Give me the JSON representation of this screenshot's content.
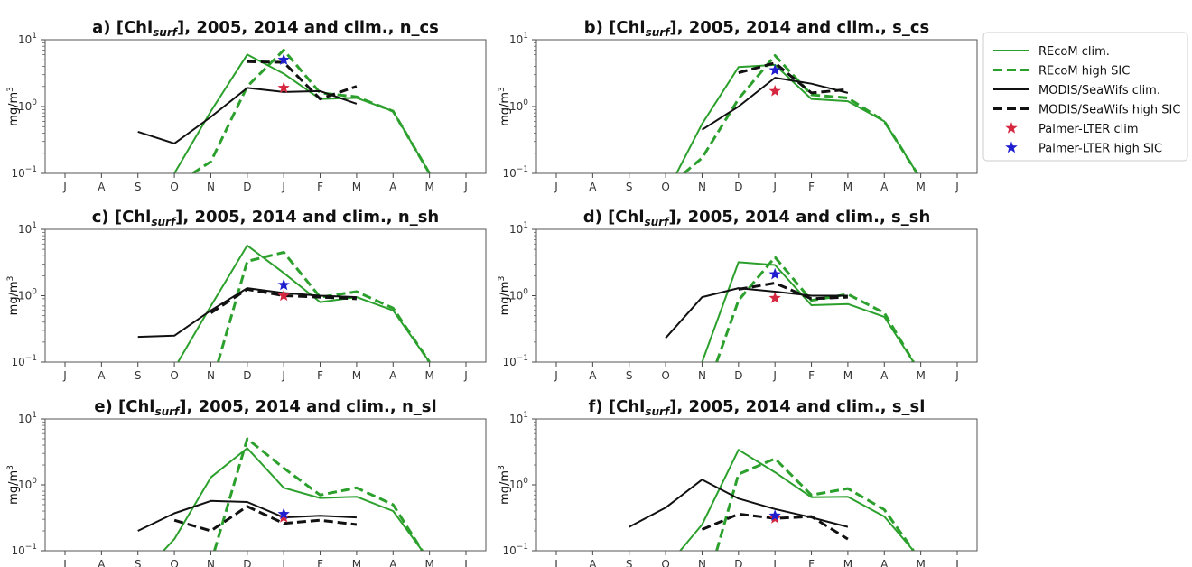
{
  "colors": {
    "recom": "#2ca02c",
    "modis": "#111111",
    "palmer_clim": "#d62740",
    "palmer_high": "#1f1fcf"
  },
  "legend": {
    "items": [
      {
        "label": "REcoM clim.",
        "style": "solid",
        "color": "#2ca02c",
        "marker": "line"
      },
      {
        "label": "REcoM high SIC",
        "style": "dashed",
        "color": "#2ca02c",
        "marker": "line"
      },
      {
        "label": "MODIS/SeaWifs clim.",
        "style": "solid",
        "color": "#111111",
        "marker": "line"
      },
      {
        "label": "MODIS/SeaWifs high SIC",
        "style": "dashed",
        "color": "#111111",
        "marker": "line"
      },
      {
        "label": "Palmer-LTER clim",
        "style": "star",
        "color": "#d62740",
        "marker": "star"
      },
      {
        "label": "Palmer-LTER high SIC",
        "style": "star",
        "color": "#1f1fcf",
        "marker": "star"
      }
    ]
  },
  "chart_data": [
    {
      "type": "line",
      "title_prefix": "a) [Chl",
      "title_sub": "surf",
      "title_suffix": "], 2005, 2014 and clim., n_cs",
      "ylabel_base": "mg/m",
      "ylabel_sup": "3",
      "yscale": "log",
      "ylim": [
        0.1,
        10
      ],
      "yticks": [
        "10",
        "10"
      ],
      "ytick_exps": [
        "1",
        "0",
        "−1"
      ],
      "categories": [
        "J",
        "A",
        "S",
        "O",
        "N",
        "D",
        "J",
        "F",
        "M",
        "A",
        "M",
        "J"
      ],
      "series": [
        {
          "name": "REcoM clim.",
          "style": "solid",
          "color": "#2ca02c",
          "x": [
            3,
            4,
            5,
            6,
            7,
            8,
            9,
            10
          ],
          "values": [
            0.1,
            0.85,
            6.0,
            3.1,
            1.3,
            1.35,
            0.85,
            0.1
          ]
        },
        {
          "name": "REcoM high SIC",
          "style": "dashed",
          "color": "#2ca02c",
          "x": [
            3.5,
            4,
            5,
            6,
            7,
            8,
            9,
            10
          ],
          "values": [
            0.1,
            0.15,
            2.0,
            7.0,
            1.6,
            1.4,
            0.85,
            0.1
          ]
        },
        {
          "name": "MODIS/SeaWifs clim.",
          "style": "solid",
          "color": "#111111",
          "x": [
            2,
            3,
            4,
            5,
            6,
            7,
            8
          ],
          "values": [
            0.42,
            0.28,
            0.7,
            1.9,
            1.65,
            1.7,
            1.1
          ]
        },
        {
          "name": "MODIS/SeaWifs high SIC",
          "style": "dashed",
          "color": "#111111",
          "x": [
            5,
            6,
            7,
            8
          ],
          "values": [
            4.7,
            4.6,
            1.3,
            2.0
          ]
        }
      ],
      "markers": [
        {
          "name": "Palmer-LTER clim",
          "color": "#d62740",
          "x": 6,
          "value": 1.9
        },
        {
          "name": "Palmer-LTER high SIC",
          "color": "#1f1fcf",
          "x": 6,
          "value": 5.0
        }
      ]
    },
    {
      "type": "line",
      "title_prefix": "b) [Chl",
      "title_sub": "surf",
      "title_suffix": "], 2005, 2014 and clim., s_cs",
      "ylabel_base": "mg/m",
      "ylabel_sup": "3",
      "yscale": "log",
      "ylim": [
        0.1,
        10
      ],
      "yticks": [
        "10",
        "10"
      ],
      "ytick_exps": [
        "1",
        "0",
        "−1"
      ],
      "categories": [
        "J",
        "A",
        "S",
        "O",
        "N",
        "D",
        "J",
        "F",
        "M",
        "A",
        "M",
        "J"
      ],
      "series": [
        {
          "name": "REcoM clim.",
          "style": "solid",
          "color": "#2ca02c",
          "x": [
            3.3,
            4,
            5,
            6,
            7,
            8,
            9,
            9.9
          ],
          "values": [
            0.1,
            0.55,
            3.9,
            4.2,
            1.3,
            1.2,
            0.6,
            0.1
          ]
        },
        {
          "name": "REcoM high SIC",
          "style": "dashed",
          "color": "#2ca02c",
          "x": [
            3.5,
            4,
            5,
            6,
            7,
            8,
            9,
            9.9
          ],
          "values": [
            0.1,
            0.17,
            1.3,
            5.8,
            1.5,
            1.35,
            0.6,
            0.1
          ]
        },
        {
          "name": "MODIS/SeaWifs clim.",
          "style": "solid",
          "color": "#111111",
          "x": [
            4,
            5,
            6,
            7,
            8
          ],
          "values": [
            0.45,
            1.0,
            2.7,
            2.2,
            1.6
          ]
        },
        {
          "name": "MODIS/SeaWifs high SIC",
          "style": "dashed",
          "color": "#111111",
          "x": [
            5,
            6,
            7,
            8
          ],
          "values": [
            3.2,
            4.5,
            1.6,
            1.8
          ]
        }
      ],
      "markers": [
        {
          "name": "Palmer-LTER clim",
          "color": "#d62740",
          "x": 6,
          "value": 1.7
        },
        {
          "name": "Palmer-LTER high SIC",
          "color": "#1f1fcf",
          "x": 6,
          "value": 3.5
        }
      ]
    },
    {
      "type": "line",
      "title_prefix": "c) [Chl",
      "title_sub": "surf",
      "title_suffix": "], 2005, 2014 and clim., n_sh",
      "ylabel_base": "mg/m",
      "ylabel_sup": "3",
      "yscale": "log",
      "ylim": [
        0.1,
        10
      ],
      "yticks": [
        "10",
        "10"
      ],
      "ytick_exps": [
        "1",
        "0",
        "−1"
      ],
      "categories": [
        "J",
        "A",
        "S",
        "O",
        "N",
        "D",
        "J",
        "F",
        "M",
        "A",
        "M",
        "J"
      ],
      "series": [
        {
          "name": "REcoM clim.",
          "style": "solid",
          "color": "#2ca02c",
          "x": [
            3.1,
            4,
            5,
            6,
            7,
            8,
            9,
            10
          ],
          "values": [
            0.1,
            0.7,
            5.7,
            2.2,
            0.8,
            0.95,
            0.6,
            0.1
          ]
        },
        {
          "name": "REcoM high SIC",
          "style": "dashed",
          "color": "#2ca02c",
          "x": [
            4.2,
            5,
            6,
            7,
            8,
            9,
            10
          ],
          "values": [
            0.1,
            3.3,
            4.5,
            0.95,
            1.15,
            0.65,
            0.1
          ]
        },
        {
          "name": "MODIS/SeaWifs clim.",
          "style": "solid",
          "color": "#111111",
          "x": [
            2,
            3,
            4,
            5,
            6,
            7,
            8
          ],
          "values": [
            0.24,
            0.25,
            0.6,
            1.3,
            1.1,
            1.0,
            0.95
          ]
        },
        {
          "name": "MODIS/SeaWifs high SIC",
          "style": "dashed",
          "color": "#111111",
          "x": [
            4,
            5,
            6,
            7,
            8
          ],
          "values": [
            0.55,
            1.25,
            1.0,
            0.95,
            0.9
          ]
        }
      ],
      "markers": [
        {
          "name": "Palmer-LTER clim",
          "color": "#d62740",
          "x": 6,
          "value": 1.0
        },
        {
          "name": "Palmer-LTER high SIC",
          "color": "#1f1fcf",
          "x": 6,
          "value": 1.45
        }
      ]
    },
    {
      "type": "line",
      "title_prefix": "d) [Chl",
      "title_sub": "surf",
      "title_suffix": "], 2005, 2014 and clim., s_sh",
      "ylabel_base": "mg/m",
      "ylabel_sup": "3",
      "yscale": "log",
      "ylim": [
        0.1,
        10
      ],
      "yticks": [
        "10",
        "10"
      ],
      "ytick_exps": [
        "1",
        "0",
        "−1"
      ],
      "categories": [
        "J",
        "A",
        "S",
        "O",
        "N",
        "D",
        "J",
        "F",
        "M",
        "A",
        "M",
        "J"
      ],
      "series": [
        {
          "name": "REcoM clim.",
          "style": "solid",
          "color": "#2ca02c",
          "x": [
            4,
            5,
            6,
            7,
            8,
            9,
            9.8
          ],
          "values": [
            0.1,
            3.2,
            2.9,
            0.72,
            0.75,
            0.48,
            0.1
          ]
        },
        {
          "name": "REcoM high SIC",
          "style": "dashed",
          "color": "#2ca02c",
          "x": [
            4.4,
            5,
            6,
            7,
            8,
            9,
            9.8
          ],
          "values": [
            0.1,
            0.85,
            3.8,
            0.85,
            1.05,
            0.55,
            0.1
          ]
        },
        {
          "name": "MODIS/SeaWifs clim.",
          "style": "solid",
          "color": "#111111",
          "x": [
            3,
            4,
            5,
            6,
            7,
            8
          ],
          "values": [
            0.23,
            0.95,
            1.3,
            1.15,
            1.0,
            1.0
          ]
        },
        {
          "name": "MODIS/SeaWifs high SIC",
          "style": "dashed",
          "color": "#111111",
          "x": [
            5,
            6,
            7,
            8
          ],
          "values": [
            1.25,
            1.55,
            0.9,
            0.95
          ]
        }
      ],
      "markers": [
        {
          "name": "Palmer-LTER clim",
          "color": "#d62740",
          "x": 6,
          "value": 0.92
        },
        {
          "name": "Palmer-LTER high SIC",
          "color": "#1f1fcf",
          "x": 6,
          "value": 2.1
        }
      ]
    },
    {
      "type": "line",
      "title_prefix": "e) [Chl",
      "title_sub": "surf",
      "title_suffix": "], 2005, 2014 and clim., n_sl",
      "ylabel_base": "mg/m",
      "ylabel_sup": "3",
      "yscale": "log",
      "ylim": [
        0.1,
        10
      ],
      "yticks": [
        "10",
        "10"
      ],
      "ytick_exps": [
        "1",
        "0",
        "−1"
      ],
      "categories": [
        "J",
        "A",
        "S",
        "O",
        "N",
        "D",
        "J",
        "F",
        "M",
        "A",
        "M",
        "J"
      ],
      "series": [
        {
          "name": "REcoM clim.",
          "style": "solid",
          "color": "#2ca02c",
          "x": [
            2.7,
            3,
            4,
            5,
            6,
            7,
            8,
            9,
            9.8
          ],
          "values": [
            0.1,
            0.15,
            1.3,
            3.6,
            0.9,
            0.63,
            0.66,
            0.4,
            0.1
          ]
        },
        {
          "name": "REcoM high SIC",
          "style": "dashed",
          "color": "#2ca02c",
          "x": [
            4.1,
            5,
            6,
            7,
            8,
            9,
            9.8
          ],
          "values": [
            0.1,
            5.0,
            1.8,
            0.7,
            0.9,
            0.5,
            0.1
          ]
        },
        {
          "name": "MODIS/SeaWifs clim.",
          "style": "solid",
          "color": "#111111",
          "x": [
            2,
            3,
            4,
            5,
            6,
            7,
            8
          ],
          "values": [
            0.2,
            0.37,
            0.57,
            0.55,
            0.32,
            0.34,
            0.32
          ]
        },
        {
          "name": "MODIS/SeaWifs high SIC",
          "style": "dashed",
          "color": "#111111",
          "x": [
            3,
            4,
            5,
            6,
            7,
            8
          ],
          "values": [
            0.29,
            0.2,
            0.47,
            0.26,
            0.29,
            0.25
          ]
        }
      ],
      "markers": [
        {
          "name": "Palmer-LTER clim",
          "color": "#d62740",
          "x": 6,
          "value": 0.32
        },
        {
          "name": "Palmer-LTER high SIC",
          "color": "#1f1fcf",
          "x": 6,
          "value": 0.36
        }
      ]
    },
    {
      "type": "line",
      "title_prefix": "f) [Chl",
      "title_sub": "surf",
      "title_suffix": "], 2005, 2014 and clim., s_sl",
      "ylabel_base": "mg/m",
      "ylabel_sup": "3",
      "yscale": "log",
      "ylim": [
        0.1,
        10
      ],
      "yticks": [
        "10",
        "10"
      ],
      "ytick_exps": [
        "1",
        "0",
        "−1"
      ],
      "categories": [
        "J",
        "A",
        "S",
        "O",
        "N",
        "D",
        "J",
        "F",
        "M",
        "A",
        "M",
        "J"
      ],
      "series": [
        {
          "name": "REcoM clim.",
          "style": "solid",
          "color": "#2ca02c",
          "x": [
            3.4,
            4,
            5,
            6,
            7,
            8,
            9,
            9.8
          ],
          "values": [
            0.1,
            0.25,
            3.4,
            1.55,
            0.65,
            0.66,
            0.33,
            0.1
          ]
        },
        {
          "name": "REcoM high SIC",
          "style": "dashed",
          "color": "#2ca02c",
          "x": [
            4.4,
            5,
            6,
            7,
            8,
            9,
            9.8
          ],
          "values": [
            0.1,
            1.45,
            2.5,
            0.7,
            0.88,
            0.42,
            0.1
          ]
        },
        {
          "name": "MODIS/SeaWifs clim.",
          "style": "solid",
          "color": "#111111",
          "x": [
            2,
            3,
            4,
            5,
            6,
            7,
            8
          ],
          "values": [
            0.23,
            0.45,
            1.2,
            0.62,
            0.43,
            0.32,
            0.23
          ]
        },
        {
          "name": "MODIS/SeaWifs high SIC",
          "style": "dashed",
          "color": "#111111",
          "x": [
            4,
            5,
            6,
            7,
            8
          ],
          "values": [
            0.21,
            0.36,
            0.31,
            0.33,
            0.15
          ]
        }
      ],
      "markers": [
        {
          "name": "Palmer-LTER clim",
          "color": "#d62740",
          "x": 6,
          "value": 0.31
        },
        {
          "name": "Palmer-LTER high SIC",
          "color": "#1f1fcf",
          "x": 6,
          "value": 0.34
        }
      ]
    }
  ]
}
